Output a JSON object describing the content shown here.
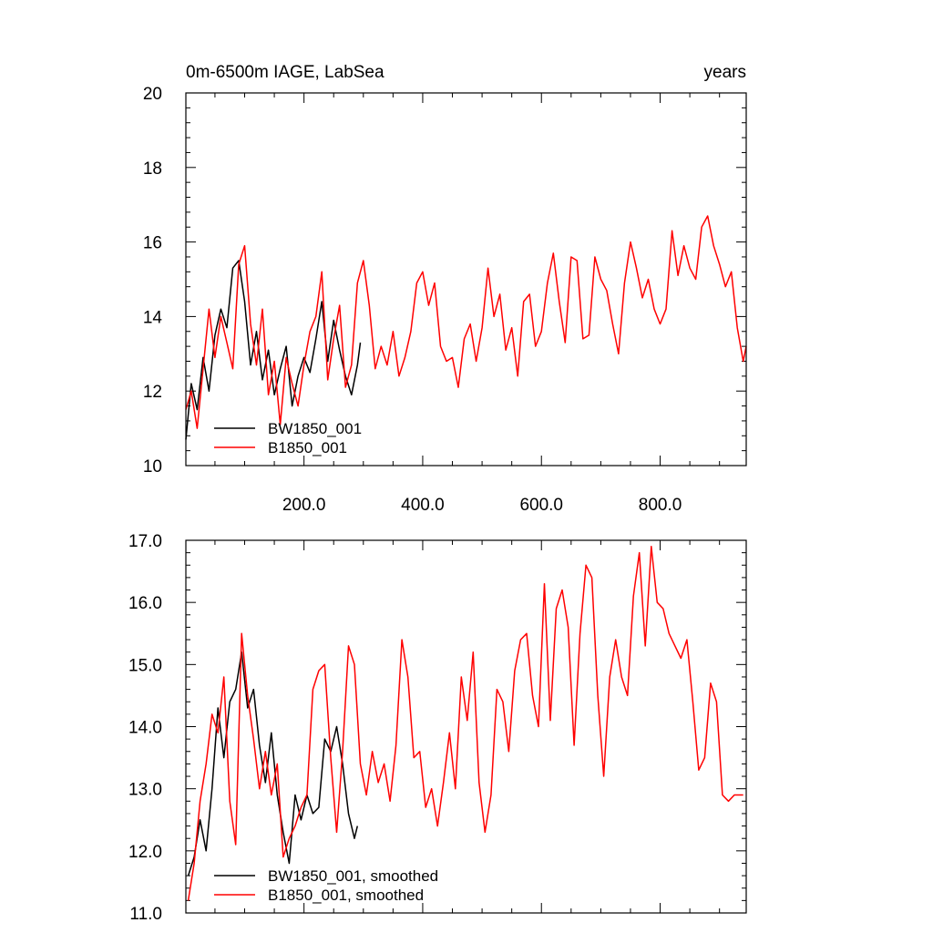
{
  "chart_data": [
    {
      "type": "line",
      "title": "0m-6500m IAGE, LabSea",
      "units": "years",
      "xlim": [
        1,
        945
      ],
      "ylim": [
        10,
        20
      ],
      "grid": false,
      "legend_position": "bottom-left",
      "y_ticks": [
        10,
        12,
        14,
        16,
        18,
        20
      ],
      "y_tick_labels": [
        "10",
        "12",
        "14",
        "16",
        "18",
        "20"
      ],
      "x_ticks": [
        200,
        400,
        600,
        800
      ],
      "x_tick_labels": [
        "200.0",
        "400.0",
        "600.0",
        "800.0"
      ],
      "series": [
        {
          "name": "BW1850_001",
          "color": "#000000",
          "x": [
            1,
            10,
            20,
            30,
            40,
            50,
            60,
            70,
            80,
            90,
            100,
            110,
            120,
            130,
            140,
            150,
            160,
            170,
            180,
            190,
            200,
            210,
            220,
            230,
            240,
            250,
            260,
            270,
            280,
            290,
            295
          ],
          "y": [
            10.7,
            12.2,
            11.5,
            12.9,
            12.0,
            13.5,
            14.2,
            13.7,
            15.3,
            15.5,
            14.4,
            12.7,
            13.6,
            12.3,
            13.1,
            11.9,
            12.6,
            13.2,
            11.6,
            12.4,
            12.9,
            12.5,
            13.4,
            14.4,
            12.8,
            13.9,
            13.1,
            12.4,
            11.9,
            12.7,
            13.3
          ]
        },
        {
          "name": "B1850_001",
          "color": "#ff0000",
          "x": [
            1,
            10,
            20,
            30,
            40,
            50,
            60,
            70,
            80,
            90,
            100,
            110,
            120,
            130,
            140,
            150,
            160,
            170,
            180,
            190,
            200,
            210,
            220,
            230,
            240,
            250,
            260,
            270,
            280,
            290,
            300,
            310,
            320,
            330,
            340,
            350,
            360,
            370,
            380,
            390,
            400,
            410,
            420,
            430,
            440,
            450,
            460,
            470,
            480,
            490,
            500,
            510,
            520,
            530,
            540,
            550,
            560,
            570,
            580,
            590,
            600,
            610,
            620,
            630,
            640,
            650,
            660,
            670,
            680,
            690,
            700,
            710,
            720,
            730,
            740,
            750,
            760,
            770,
            780,
            790,
            800,
            810,
            820,
            830,
            840,
            850,
            860,
            870,
            880,
            890,
            900,
            910,
            920,
            930,
            940,
            945
          ],
          "y": [
            11.5,
            12.0,
            11.0,
            12.6,
            14.2,
            12.9,
            14.0,
            13.3,
            12.6,
            15.4,
            15.9,
            13.8,
            12.7,
            14.2,
            11.9,
            12.8,
            11.1,
            12.9,
            12.2,
            11.6,
            12.7,
            13.6,
            14.0,
            15.2,
            12.3,
            13.4,
            14.3,
            12.1,
            12.7,
            14.9,
            15.5,
            14.3,
            12.6,
            13.2,
            12.7,
            13.6,
            12.4,
            12.9,
            13.6,
            14.9,
            15.2,
            14.3,
            14.9,
            13.2,
            12.8,
            12.9,
            12.1,
            13.4,
            13.8,
            12.8,
            13.7,
            15.3,
            14.0,
            14.6,
            13.1,
            13.7,
            12.4,
            14.4,
            14.6,
            13.2,
            13.6,
            14.9,
            15.7,
            14.4,
            13.3,
            15.6,
            15.5,
            13.4,
            13.5,
            15.6,
            15.0,
            14.7,
            13.8,
            13.0,
            14.9,
            16.0,
            15.3,
            14.5,
            15.0,
            14.2,
            13.8,
            14.2,
            16.3,
            15.1,
            15.9,
            15.3,
            15.0,
            16.4,
            16.7,
            15.9,
            15.4,
            14.8,
            15.2,
            13.7,
            12.8,
            13.2
          ]
        }
      ]
    },
    {
      "type": "line",
      "title": "",
      "xlim": [
        1,
        945
      ],
      "ylim": [
        11.0,
        17.0
      ],
      "grid": false,
      "legend_position": "bottom-left",
      "y_ticks": [
        11,
        12,
        13,
        14,
        15,
        16,
        17
      ],
      "y_tick_labels": [
        "11.0",
        "12.0",
        "13.0",
        "14.0",
        "15.0",
        "16.0",
        "17.0"
      ],
      "series": [
        {
          "name": "BW1850_001, smoothed",
          "color": "#000000",
          "x": [
            5,
            15,
            25,
            35,
            45,
            55,
            65,
            75,
            85,
            95,
            105,
            115,
            125,
            135,
            145,
            155,
            165,
            175,
            185,
            195,
            205,
            215,
            225,
            235,
            245,
            255,
            265,
            275,
            285,
            290
          ],
          "y": [
            11.6,
            11.9,
            12.5,
            12.0,
            13.0,
            14.3,
            13.5,
            14.4,
            14.6,
            15.2,
            14.3,
            14.6,
            13.7,
            13.1,
            13.9,
            12.9,
            12.3,
            11.8,
            12.9,
            12.5,
            12.9,
            12.6,
            12.7,
            13.8,
            13.6,
            14.0,
            13.4,
            12.6,
            12.2,
            12.4
          ]
        },
        {
          "name": "B1850_001, smoothed",
          "color": "#ff0000",
          "x": [
            5,
            15,
            25,
            35,
            45,
            55,
            65,
            75,
            85,
            95,
            105,
            115,
            125,
            135,
            145,
            155,
            165,
            175,
            185,
            195,
            205,
            215,
            225,
            235,
            245,
            255,
            265,
            275,
            285,
            295,
            305,
            315,
            325,
            335,
            345,
            355,
            365,
            375,
            385,
            395,
            405,
            415,
            425,
            435,
            445,
            455,
            465,
            475,
            485,
            495,
            505,
            515,
            525,
            535,
            545,
            555,
            565,
            575,
            585,
            595,
            605,
            615,
            625,
            635,
            645,
            655,
            665,
            675,
            685,
            695,
            705,
            715,
            725,
            735,
            745,
            755,
            765,
            775,
            785,
            795,
            805,
            815,
            825,
            835,
            845,
            855,
            865,
            875,
            885,
            895,
            905,
            915,
            925,
            935,
            940
          ],
          "y": [
            11.2,
            11.8,
            12.8,
            13.4,
            14.2,
            13.9,
            14.8,
            12.8,
            12.1,
            15.5,
            14.5,
            13.8,
            13.0,
            13.6,
            12.9,
            13.4,
            11.9,
            12.2,
            12.4,
            12.7,
            12.9,
            14.6,
            14.9,
            15.0,
            13.5,
            12.3,
            13.6,
            15.3,
            15.0,
            13.4,
            12.9,
            13.6,
            13.1,
            13.4,
            12.8,
            13.7,
            15.4,
            14.8,
            13.5,
            13.6,
            12.7,
            13.0,
            12.4,
            13.1,
            13.9,
            13.0,
            14.8,
            14.1,
            15.2,
            13.1,
            12.3,
            12.9,
            14.6,
            14.4,
            13.6,
            14.9,
            15.4,
            15.5,
            14.5,
            14.0,
            16.3,
            14.1,
            15.9,
            16.2,
            15.6,
            13.7,
            15.5,
            16.6,
            16.4,
            14.5,
            13.2,
            14.8,
            15.4,
            14.8,
            14.5,
            16.1,
            16.8,
            15.3,
            16.9,
            16.0,
            15.9,
            15.5,
            15.3,
            15.1,
            15.4,
            14.4,
            13.3,
            13.5,
            14.7,
            14.4,
            12.9,
            12.8,
            12.9,
            12.9,
            12.9
          ]
        }
      ]
    }
  ]
}
